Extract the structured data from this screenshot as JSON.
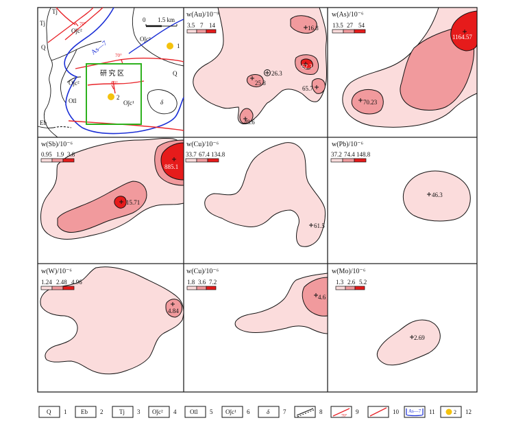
{
  "geo_map": {
    "labels": {
      "q": "Q",
      "tj": "Tj",
      "eb": "Eb",
      "oyc2_a": "Oǰc²",
      "oyc2_b": "Oǰc²",
      "oyc2_c": "Oǰc²",
      "oyc1": "Oǰc¹",
      "oil": "Oīl",
      "delta": "δ",
      "study_area": "研 究 区",
      "fault_name": "As—7",
      "dip_1": "70°",
      "dip_2": "70°",
      "dip_3": "63°",
      "point_1": "1",
      "point_2": "2",
      "scale_0": "0",
      "scale_1": "1.5 km"
    }
  },
  "panels": [
    {
      "title": "w(Au)/10⁻⁹",
      "scale": [
        "3.5",
        "7",
        "14"
      ],
      "anomalies": [
        "16.8",
        "26.3",
        "25.8",
        "62.3",
        "65.7",
        "48.6"
      ]
    },
    {
      "title": "w(As)/10⁻⁶",
      "scale": [
        "13.5",
        "27",
        "54"
      ],
      "anomalies": [
        "1164.57",
        "70.23"
      ]
    },
    {
      "title": "w(Sb)/10⁻⁶",
      "scale": [
        "0.95",
        "1.9",
        "3.8"
      ],
      "anomalies": [
        "885.1",
        "15.71"
      ]
    },
    {
      "title": "w(Cu)/10⁻⁶",
      "scale": [
        "33.7",
        "67.4",
        "134.8"
      ],
      "anomalies": [
        "61.5"
      ]
    },
    {
      "title": "w(Pb)/10⁻⁶",
      "scale": [
        "37.2",
        "74.4",
        "148.8"
      ],
      "anomalies": [
        "46.3"
      ]
    },
    {
      "title": "w(W)/10⁻⁶",
      "scale": [
        "1.24",
        "2.48",
        "4.96"
      ],
      "anomalies": [
        "4.84"
      ]
    },
    {
      "title": "w(Cu)/10⁻⁶",
      "scale": [
        "1.8",
        "3.6",
        "7.2"
      ],
      "anomalies": [
        "4.6"
      ]
    },
    {
      "title": "w(Mo)/10⁻⁶",
      "scale": [
        "1.3",
        "2.6",
        "5.2"
      ],
      "anomalies": [
        "2.69"
      ]
    }
  ],
  "legend": [
    {
      "symbol": "Q",
      "num": "1"
    },
    {
      "symbol": "Eb",
      "num": "2"
    },
    {
      "symbol": "Tj",
      "num": "3"
    },
    {
      "symbol": "Oǰc²",
      "num": "4"
    },
    {
      "symbol": "Oīl",
      "num": "5"
    },
    {
      "symbol": "Oǰc¹",
      "num": "6"
    },
    {
      "symbol": "δ",
      "num": "7"
    },
    {
      "symbol": "",
      "num": "8"
    },
    {
      "symbol": "70°",
      "num": "9"
    },
    {
      "symbol": "",
      "num": "10"
    },
    {
      "symbol": "As—7",
      "num": "11"
    },
    {
      "symbol": "2",
      "num": "12"
    }
  ],
  "colors": {
    "light": "#fbdcdc",
    "medium": "#f19a9d",
    "high": "#e61b1b",
    "fault_red": "#e8252a",
    "fault_blue": "#1b2fd6",
    "study_box": "#2db11d",
    "point": "#f4c20d",
    "frame": "#222222"
  }
}
